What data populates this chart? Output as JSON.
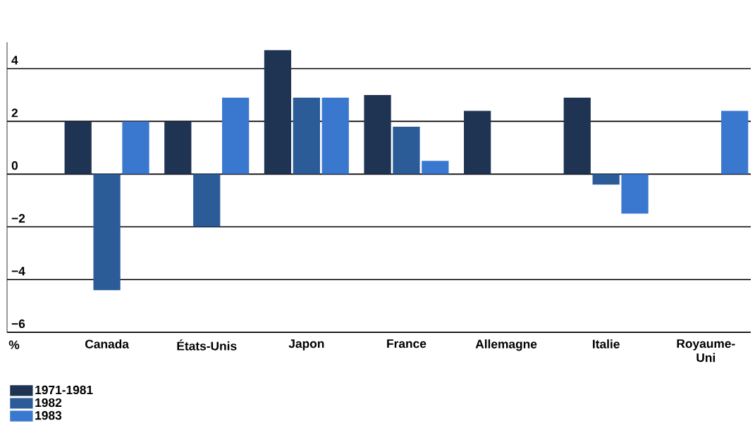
{
  "chart_data": {
    "type": "bar",
    "annotations": [
      "%"
    ],
    "categories": [
      "Canada",
      "États-Unis",
      "Japon",
      "France",
      "Allemagne",
      "Italie",
      "Royaume-Uni"
    ],
    "series": [
      {
        "name": "1971-1981",
        "color": "#1f3352",
        "values": [
          2.0,
          2.0,
          4.7,
          3.0,
          2.4,
          2.9,
          null
        ]
      },
      {
        "name": "1982",
        "color": "#2b5c98",
        "values": [
          -4.4,
          -2.0,
          2.9,
          1.8,
          0,
          -0.4,
          null
        ]
      },
      {
        "name": "1983",
        "color": "#3a77cf",
        "values": [
          2.0,
          2.9,
          2.9,
          0.5,
          null,
          -1.5,
          2.4
        ]
      }
    ],
    "ylim": [
      -6,
      5
    ],
    "yticks": [
      4,
      2,
      0,
      {
        "value": -2,
        "label": "−2"
      },
      {
        "value": -4,
        "label": "−4"
      },
      {
        "value": -6,
        "label": "−6"
      }
    ],
    "grid": "y",
    "legend": "bottom left"
  }
}
